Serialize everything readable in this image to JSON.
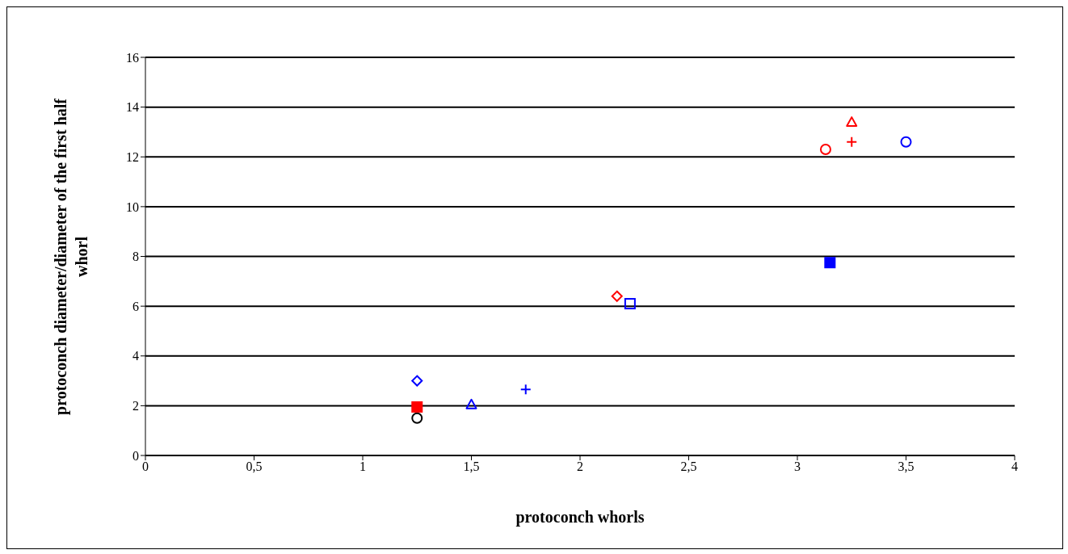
{
  "chart_data": {
    "type": "scatter",
    "xlabel": "protoconch whorls",
    "ylabel": "protoconch diameter/diameter of the first half whorl",
    "xlim": [
      0,
      4
    ],
    "xticks": [
      0,
      {
        "value": 0.5,
        "label": "0,5"
      },
      1,
      {
        "value": 1.5,
        "label": "1,5"
      },
      2,
      {
        "value": 2.5,
        "label": "2,5"
      },
      3,
      {
        "value": 3.5,
        "label": "3,5"
      },
      4
    ],
    "ylim": [
      0,
      16
    ],
    "yticks": [
      0,
      2,
      4,
      6,
      8,
      10,
      12,
      14,
      16
    ],
    "grid": "y",
    "series": [
      {
        "color": "#000000",
        "marker": "circle",
        "x": [
          1.25
        ],
        "values": [
          1.5
        ]
      },
      {
        "color": "#ff0000",
        "marker": "square-filled",
        "x": [
          1.25
        ],
        "values": [
          1.95
        ]
      },
      {
        "color": "#0000ff",
        "marker": "diamond",
        "x": [
          1.25
        ],
        "values": [
          3
        ]
      },
      {
        "color": "#0000ff",
        "marker": "triangle",
        "x": [
          1.5
        ],
        "values": [
          2.05
        ]
      },
      {
        "color": "#0000ff",
        "marker": "cross",
        "x": [
          1.75
        ],
        "values": [
          2.65
        ]
      },
      {
        "color": "#ff0000",
        "marker": "diamond",
        "x": [
          2.17
        ],
        "values": [
          6.4
        ]
      },
      {
        "color": "#0000ff",
        "marker": "square",
        "x": [
          2.23
        ],
        "values": [
          6.1
        ]
      },
      {
        "color": "#0000ff",
        "marker": "square-filled",
        "x": [
          3.15
        ],
        "values": [
          7.75
        ]
      },
      {
        "color": "#ff0000",
        "marker": "circle",
        "x": [
          3.13
        ],
        "values": [
          12.3
        ]
      },
      {
        "color": "#ff0000",
        "marker": "triangle",
        "x": [
          3.25
        ],
        "values": [
          13.4
        ]
      },
      {
        "color": "#ff0000",
        "marker": "cross",
        "x": [
          3.25
        ],
        "values": [
          12.6
        ]
      },
      {
        "color": "#0000ff",
        "marker": "circle",
        "x": [
          3.5
        ],
        "values": [
          12.6
        ]
      }
    ]
  }
}
